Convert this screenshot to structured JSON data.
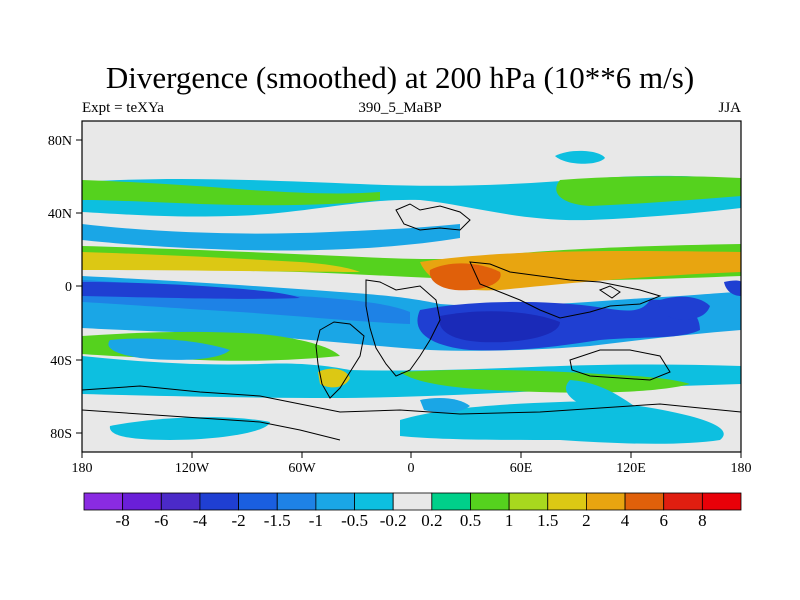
{
  "title": "Divergence (smoothed) at 200 hPa (10**6 m/s)",
  "left_label": "Expt = teXYa",
  "center_label": "390_5_MaBP",
  "right_label": "JJA",
  "lat_ticks": [
    "80N",
    "40N",
    "0",
    "40S",
    "80S"
  ],
  "lon_ticks": [
    "180",
    "120W",
    "60W",
    "0",
    "60E",
    "120E",
    "180"
  ],
  "colorbar": {
    "labels": [
      "-8",
      "-6",
      "-4",
      "-2",
      "-1.5",
      "-1",
      "-0.5",
      "-0.2",
      "0.2",
      "0.5",
      "1",
      "1.5",
      "2",
      "4",
      "6",
      "8"
    ],
    "colors": [
      "#8a2be2",
      "#6a1fd8",
      "#4b2ac8",
      "#1f3fd2",
      "#1a5fe0",
      "#1e82e6",
      "#1aa6e6",
      "#0dbfe0",
      "#e8e8e8",
      "#00d08a",
      "#55d21e",
      "#a8d81e",
      "#dcc814",
      "#e8a510",
      "#e0600a",
      "#e01e10",
      "#e80008"
    ]
  },
  "colors": {
    "background": "#e8e8e8",
    "coastline": "#000000"
  }
}
